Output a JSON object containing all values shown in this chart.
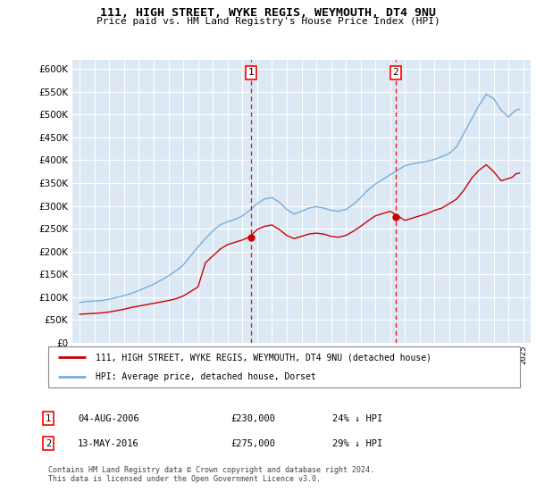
{
  "title": "111, HIGH STREET, WYKE REGIS, WEYMOUTH, DT4 9NU",
  "subtitle": "Price paid vs. HM Land Registry's House Price Index (HPI)",
  "ylim": [
    0,
    620000
  ],
  "yticks": [
    0,
    50000,
    100000,
    150000,
    200000,
    250000,
    300000,
    350000,
    400000,
    450000,
    500000,
    550000,
    600000
  ],
  "xlim_start": 1994.5,
  "xlim_end": 2025.5,
  "background_color": "#dce9f5",
  "grid_color": "#ffffff",
  "purchase1_x": 2006.59,
  "purchase1_y": 230000,
  "purchase1_label": "1",
  "purchase1_date": "04-AUG-2006",
  "purchase1_price": "£230,000",
  "purchase1_note": "24% ↓ HPI",
  "purchase2_x": 2016.37,
  "purchase2_y": 275000,
  "purchase2_label": "2",
  "purchase2_date": "13-MAY-2016",
  "purchase2_price": "£275,000",
  "purchase2_note": "29% ↓ HPI",
  "red_line_color": "#cc0000",
  "blue_line_color": "#7aacda",
  "legend_label_red": "111, HIGH STREET, WYKE REGIS, WEYMOUTH, DT4 9NU (detached house)",
  "legend_label_blue": "HPI: Average price, detached house, Dorset",
  "footer": "Contains HM Land Registry data © Crown copyright and database right 2024.\nThis data is licensed under the Open Government Licence v3.0.",
  "hpi_x": [
    1995.0,
    1995.25,
    1995.5,
    1995.75,
    1996.0,
    1996.25,
    1996.5,
    1996.75,
    1997.0,
    1997.25,
    1997.5,
    1997.75,
    1998.0,
    1998.25,
    1998.5,
    1998.75,
    1999.0,
    1999.25,
    1999.5,
    1999.75,
    2000.0,
    2000.25,
    2000.5,
    2000.75,
    2001.0,
    2001.25,
    2001.5,
    2001.75,
    2002.0,
    2002.25,
    2002.5,
    2002.75,
    2003.0,
    2003.25,
    2003.5,
    2003.75,
    2004.0,
    2004.25,
    2004.5,
    2004.75,
    2005.0,
    2005.25,
    2005.5,
    2005.75,
    2006.0,
    2006.25,
    2006.5,
    2006.75,
    2007.0,
    2007.25,
    2007.5,
    2007.75,
    2008.0,
    2008.25,
    2008.5,
    2008.75,
    2009.0,
    2009.25,
    2009.5,
    2009.75,
    2010.0,
    2010.25,
    2010.5,
    2010.75,
    2011.0,
    2011.25,
    2011.5,
    2011.75,
    2012.0,
    2012.25,
    2012.5,
    2012.75,
    2013.0,
    2013.25,
    2013.5,
    2013.75,
    2014.0,
    2014.25,
    2014.5,
    2014.75,
    2015.0,
    2015.25,
    2015.5,
    2015.75,
    2016.0,
    2016.25,
    2016.5,
    2016.75,
    2017.0,
    2017.25,
    2017.5,
    2017.75,
    2018.0,
    2018.25,
    2018.5,
    2018.75,
    2019.0,
    2019.25,
    2019.5,
    2019.75,
    2020.0,
    2020.25,
    2020.5,
    2020.75,
    2021.0,
    2021.25,
    2021.5,
    2021.75,
    2022.0,
    2022.25,
    2022.5,
    2022.75,
    2023.0,
    2023.25,
    2023.5,
    2023.75,
    2024.0,
    2024.25,
    2024.5,
    2024.75
  ],
  "hpi_y": [
    88000,
    89000,
    90000,
    90500,
    91000,
    91500,
    92000,
    93500,
    95000,
    97000,
    99000,
    101000,
    103000,
    105500,
    108000,
    111000,
    114000,
    117500,
    121000,
    124500,
    128000,
    132500,
    137000,
    141500,
    146000,
    151500,
    157000,
    163500,
    170000,
    180000,
    190000,
    200000,
    210000,
    219000,
    228000,
    236500,
    245000,
    251500,
    258000,
    261500,
    265000,
    267500,
    270000,
    274000,
    278000,
    284000,
    290000,
    297500,
    305000,
    310000,
    315000,
    316500,
    318000,
    313000,
    308000,
    300000,
    292000,
    287000,
    282000,
    285000,
    288000,
    291500,
    295000,
    296500,
    298000,
    296500,
    295000,
    292500,
    290000,
    289000,
    288000,
    290000,
    292000,
    297500,
    303000,
    310500,
    318000,
    326500,
    335000,
    341500,
    348000,
    353000,
    358000,
    363000,
    368000,
    373000,
    378000,
    383000,
    388000,
    390000,
    392000,
    393500,
    395000,
    396500,
    398000,
    400000,
    402000,
    405000,
    408000,
    411500,
    415000,
    422500,
    430000,
    445000,
    460000,
    475000,
    490000,
    505000,
    520000,
    532500,
    545000,
    540000,
    535000,
    522500,
    510000,
    502500,
    495000,
    502500,
    510000,
    512000
  ],
  "red_x": [
    1995.0,
    1995.25,
    1995.5,
    1995.75,
    1996.0,
    1996.25,
    1996.5,
    1996.75,
    1997.0,
    1997.25,
    1997.5,
    1997.75,
    1998.0,
    1998.25,
    1998.5,
    1998.75,
    1999.0,
    1999.25,
    1999.5,
    1999.75,
    2000.0,
    2000.25,
    2000.5,
    2000.75,
    2001.0,
    2001.25,
    2001.5,
    2001.75,
    2002.0,
    2002.25,
    2002.5,
    2002.75,
    2003.0,
    2003.25,
    2003.5,
    2003.75,
    2004.0,
    2004.25,
    2004.5,
    2004.75,
    2005.0,
    2005.25,
    2005.5,
    2005.75,
    2006.0,
    2006.25,
    2006.5,
    2006.75,
    2007.0,
    2007.25,
    2007.5,
    2007.75,
    2008.0,
    2008.25,
    2008.5,
    2008.75,
    2009.0,
    2009.25,
    2009.5,
    2009.75,
    2010.0,
    2010.25,
    2010.5,
    2010.75,
    2011.0,
    2011.25,
    2011.5,
    2011.75,
    2012.0,
    2012.25,
    2012.5,
    2012.75,
    2013.0,
    2013.25,
    2013.5,
    2013.75,
    2014.0,
    2014.25,
    2014.5,
    2014.75,
    2015.0,
    2015.25,
    2015.5,
    2015.75,
    2016.0,
    2016.25,
    2016.5,
    2016.75,
    2017.0,
    2017.25,
    2017.5,
    2017.75,
    2018.0,
    2018.25,
    2018.5,
    2018.75,
    2019.0,
    2019.25,
    2019.5,
    2019.75,
    2020.0,
    2020.25,
    2020.5,
    2020.75,
    2021.0,
    2021.25,
    2021.5,
    2021.75,
    2022.0,
    2022.25,
    2022.5,
    2022.75,
    2023.0,
    2023.25,
    2023.5,
    2023.75,
    2024.0,
    2024.25,
    2024.5,
    2024.75
  ],
  "red_y": [
    62000,
    62500,
    63000,
    63500,
    64000,
    64500,
    65000,
    66000,
    67000,
    68500,
    70000,
    71500,
    73000,
    75000,
    77000,
    78500,
    80000,
    81500,
    83000,
    84500,
    86000,
    87500,
    89000,
    90500,
    92000,
    94000,
    96000,
    99000,
    102000,
    107000,
    112000,
    117000,
    122000,
    148500,
    175000,
    182500,
    190000,
    197500,
    205000,
    210000,
    215000,
    217500,
    220000,
    222500,
    225000,
    228500,
    232000,
    240000,
    248000,
    251500,
    255000,
    256500,
    258000,
    253000,
    248000,
    241500,
    235000,
    231500,
    228000,
    230500,
    233000,
    235500,
    238000,
    239000,
    240000,
    239000,
    238000,
    235500,
    233000,
    232000,
    231000,
    233000,
    235000,
    239500,
    244000,
    249500,
    255000,
    261000,
    267000,
    272500,
    278000,
    280500,
    283000,
    285500,
    288000,
    283000,
    278000,
    273000,
    268000,
    270500,
    273000,
    275500,
    278000,
    280500,
    283000,
    286500,
    290000,
    292500,
    295000,
    300000,
    305000,
    310000,
    315000,
    325000,
    335000,
    347500,
    360000,
    369000,
    378000,
    384000,
    390000,
    382500,
    375000,
    365000,
    355000,
    357500,
    360000,
    362500,
    370000,
    372000
  ]
}
